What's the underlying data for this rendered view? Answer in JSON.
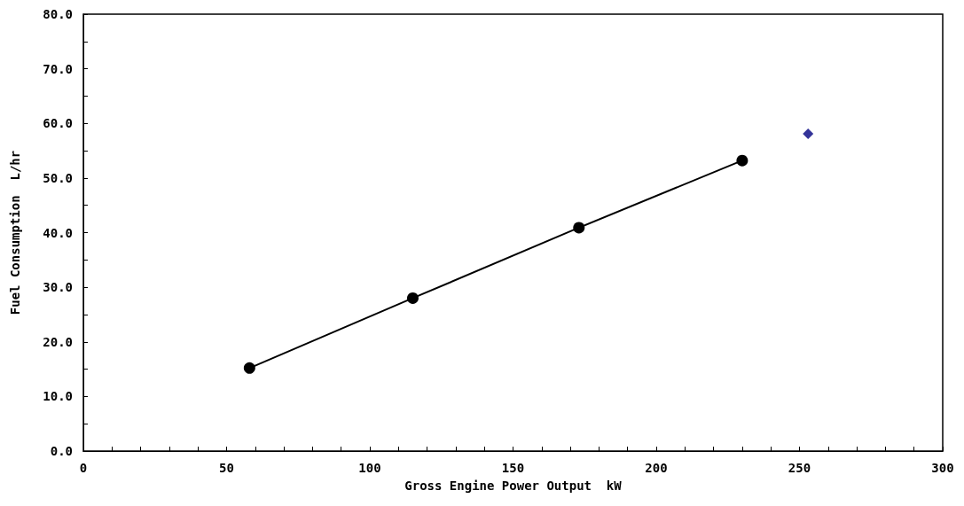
{
  "chart_data": {
    "type": "line",
    "xlabel": "Gross Engine Power Output  kW",
    "ylabel": "Fuel Consumption  L/hr",
    "series": [
      {
        "color": "#000000",
        "marker": "circle",
        "x": [
          58,
          115,
          173,
          230
        ],
        "values": [
          15.2,
          28.0,
          40.9,
          53.2
        ]
      },
      {
        "type": "scatter",
        "color": "#000080",
        "marker": "diamond",
        "x": [
          253
        ],
        "values": [
          58.1
        ]
      }
    ],
    "xlim": [
      0,
      300
    ],
    "xticks": [
      0,
      {
        "value": 10,
        "label": null
      },
      {
        "value": 20,
        "label": null
      },
      {
        "value": 30,
        "label": null
      },
      {
        "value": 40,
        "label": null
      },
      50,
      {
        "value": 60,
        "label": null
      },
      {
        "value": 70,
        "label": null
      },
      {
        "value": 80,
        "label": null
      },
      {
        "value": 90,
        "label": null
      },
      100,
      {
        "value": 110,
        "label": null
      },
      {
        "value": 120,
        "label": null
      },
      {
        "value": 130,
        "label": null
      },
      {
        "value": 140,
        "label": null
      },
      150,
      {
        "value": 160,
        "label": null
      },
      {
        "value": 170,
        "label": null
      },
      {
        "value": 180,
        "label": null
      },
      {
        "value": 190,
        "label": null
      },
      200,
      {
        "value": 210,
        "label": null
      },
      {
        "value": 220,
        "label": null
      },
      {
        "value": 230,
        "label": null
      },
      {
        "value": 240,
        "label": null
      },
      250,
      {
        "value": 260,
        "label": null
      },
      {
        "value": 270,
        "label": null
      },
      {
        "value": 280,
        "label": null
      },
      {
        "value": 290,
        "label": null
      },
      300
    ],
    "ylim": [
      0,
      80
    ],
    "yticks": [
      {
        "value": 0,
        "label": "0.0"
      },
      {
        "value": 5,
        "label": null
      },
      {
        "value": 10,
        "label": "10.0"
      },
      {
        "value": 15,
        "label": null
      },
      {
        "value": 20,
        "label": "20.0"
      },
      {
        "value": 25,
        "label": null
      },
      {
        "value": 30,
        "label": "30.0"
      },
      {
        "value": 35,
        "label": null
      },
      {
        "value": 40,
        "label": "40.0"
      },
      {
        "value": 45,
        "label": null
      },
      {
        "value": 50,
        "label": "50.0"
      },
      {
        "value": 55,
        "label": null
      },
      {
        "value": 60,
        "label": "60.0"
      },
      {
        "value": 65,
        "label": null
      },
      {
        "value": 70,
        "label": "70.0"
      },
      {
        "value": 75,
        "label": null
      },
      {
        "value": 80,
        "label": "80.0"
      }
    ],
    "grid": false,
    "line_style": "solid"
  }
}
